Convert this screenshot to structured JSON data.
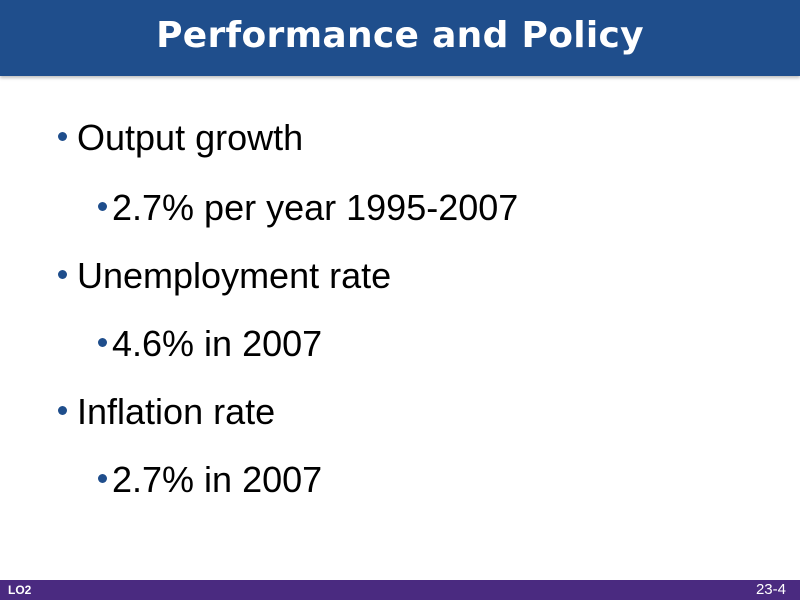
{
  "slide": {
    "title": "Performance and Policy",
    "bullets": [
      {
        "level": 1,
        "text": "Output growth"
      },
      {
        "level": 2,
        "text": "2.7% per year 1995-2007"
      },
      {
        "level": 1,
        "text": "Unemployment rate"
      },
      {
        "level": 2,
        "text": "4.6% in 2007"
      },
      {
        "level": 1,
        "text": "Inflation rate"
      },
      {
        "level": 2,
        "text": "2.7% in 2007"
      }
    ],
    "footer": {
      "left_label": "LO2",
      "page_number": "23-4"
    }
  },
  "colors": {
    "title_bar": "#1f4e8c",
    "footer_bar": "#4a2a80",
    "bullet_dot": "#1f4e8c"
  }
}
